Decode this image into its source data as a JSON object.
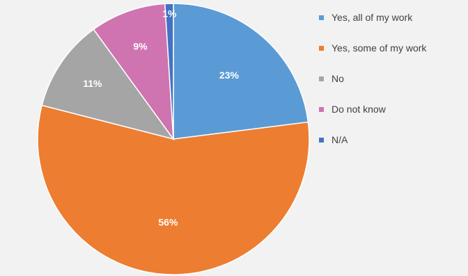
{
  "chart_data": {
    "type": "pie",
    "categories": [
      "Yes, all of my work",
      "Yes, some of my work",
      "No",
      "Do not know",
      "N/A"
    ],
    "values": [
      23,
      56,
      11,
      9,
      1
    ],
    "labels": [
      "23%",
      "56%",
      "11%",
      "9%",
      "1%"
    ],
    "colors": [
      "#5b9bd5",
      "#ed7d31",
      "#a5a5a5",
      "#cf74b0",
      "#4472c4"
    ],
    "legend_position": "right",
    "title": ""
  }
}
